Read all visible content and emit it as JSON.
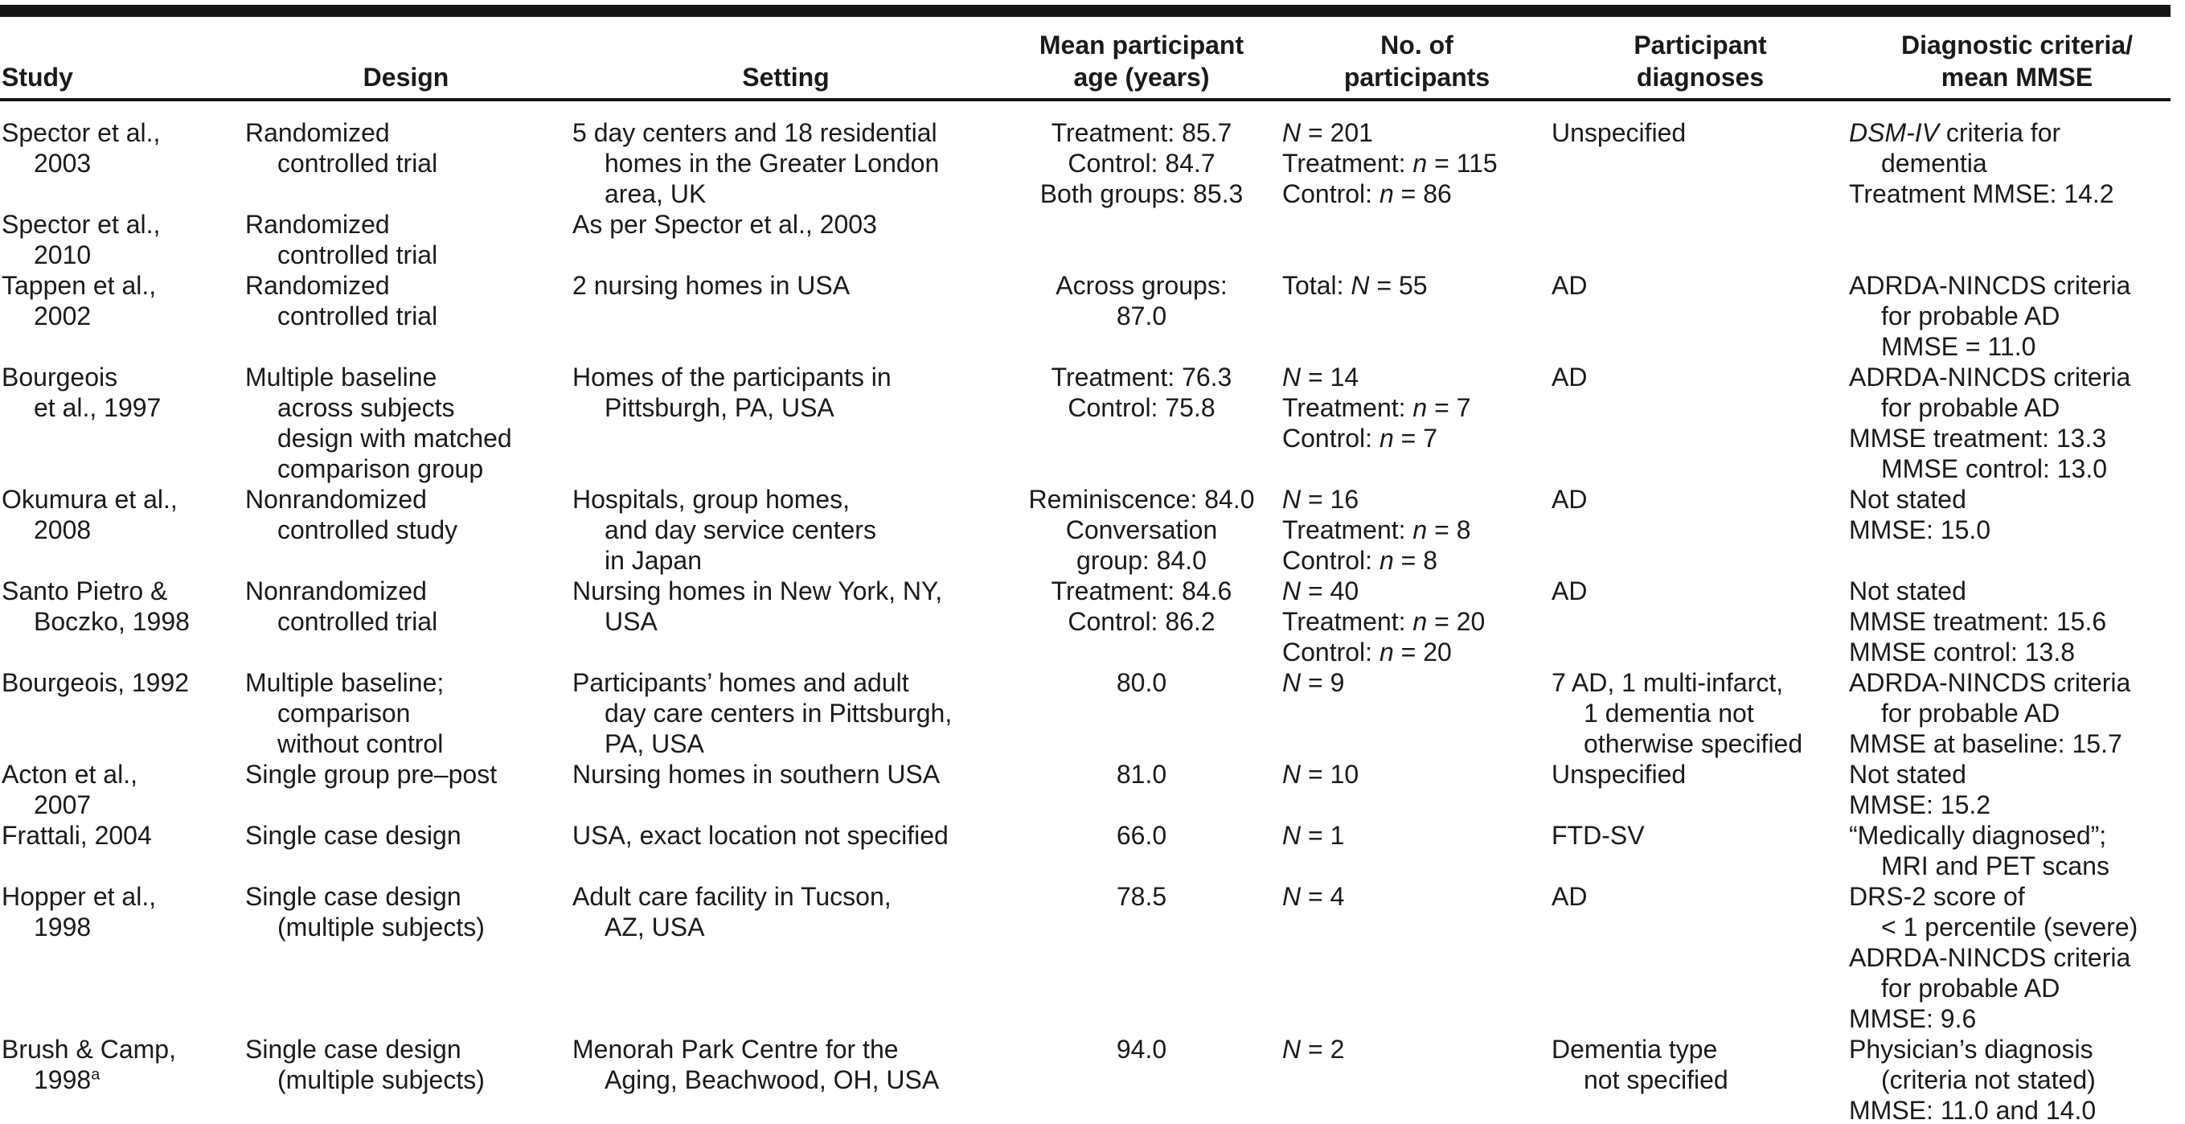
{
  "colors": {
    "rule": "#161616",
    "text": "#1a1a1a",
    "background": "#ffffff"
  },
  "table": {
    "columns": [
      {
        "id": "study",
        "header_align": "left",
        "label_lines": [
          "Study"
        ]
      },
      {
        "id": "design",
        "header_align": "center",
        "label_lines": [
          "Design"
        ]
      },
      {
        "id": "setting",
        "header_align": "center",
        "label_lines": [
          "Setting"
        ]
      },
      {
        "id": "age",
        "header_align": "center",
        "label_lines": [
          "Mean participant",
          "age (years)"
        ]
      },
      {
        "id": "participants",
        "header_align": "center",
        "label_lines": [
          "No. of",
          "participants"
        ]
      },
      {
        "id": "diagnoses",
        "header_align": "center",
        "label_lines": [
          "Participant",
          "diagnoses"
        ]
      },
      {
        "id": "criteria",
        "header_align": "center",
        "label_lines": [
          "Diagnostic criteria/",
          "mean MMSE"
        ]
      }
    ],
    "rows": [
      {
        "study": [
          {
            "t": "Spector et al.,"
          },
          {
            "t": "2003",
            "i": 1
          }
        ],
        "design": [
          {
            "t": "Randomized"
          },
          {
            "t": "controlled trial",
            "i": 1
          }
        ],
        "setting": [
          {
            "t": "5 day centers and 18 residential"
          },
          {
            "t": "homes in the Greater London",
            "i": 1
          },
          {
            "t": "area, UK",
            "i": 1
          }
        ],
        "age": [
          {
            "t": "Treatment: 85.7"
          },
          {
            "t": "Control: 84.7"
          },
          {
            "t": "Both groups: 85.3"
          }
        ],
        "participants": [
          {
            "t": "*N* = 201"
          },
          {
            "t": "Treatment: *n* = 115"
          },
          {
            "t": "Control: *n* = 86"
          }
        ],
        "diagnoses": [
          {
            "t": "Unspecified"
          }
        ],
        "criteria": [
          {
            "t": "*DSM-IV* criteria for"
          },
          {
            "t": "dementia",
            "i": 1
          },
          {
            "t": "Treatment MMSE: 14.2"
          }
        ]
      },
      {
        "study": [
          {
            "t": "Spector et al.,"
          },
          {
            "t": "2010",
            "i": 1
          }
        ],
        "design": [
          {
            "t": "Randomized"
          },
          {
            "t": "controlled trial",
            "i": 1
          }
        ],
        "setting": [
          {
            "t": "As per Spector et al., 2003"
          }
        ],
        "age": [],
        "participants": [],
        "diagnoses": [],
        "criteria": []
      },
      {
        "study": [
          {
            "t": "Tappen et al.,"
          },
          {
            "t": "2002",
            "i": 1
          }
        ],
        "design": [
          {
            "t": "Randomized"
          },
          {
            "t": "controlled trial",
            "i": 1
          }
        ],
        "setting": [
          {
            "t": "2 nursing homes in USA"
          }
        ],
        "age": [
          {
            "t": "Across groups:"
          },
          {
            "t": "87.0"
          }
        ],
        "participants": [
          {
            "t": "Total: *N* = 55"
          }
        ],
        "diagnoses": [
          {
            "t": "AD"
          }
        ],
        "criteria": [
          {
            "t": "ADRDA-NINCDS criteria"
          },
          {
            "t": "for probable AD",
            "i": 1
          },
          {
            "t": "MMSE = 11.0",
            "i": 1
          }
        ]
      },
      {
        "study": [
          {
            "t": "Bourgeois"
          },
          {
            "t": "et al., 1997",
            "i": 1
          }
        ],
        "design": [
          {
            "t": "Multiple baseline"
          },
          {
            "t": "across subjects",
            "i": 1
          },
          {
            "t": "design with matched",
            "i": 1
          },
          {
            "t": "comparison group",
            "i": 1
          }
        ],
        "setting": [
          {
            "t": "Homes of the participants in"
          },
          {
            "t": "Pittsburgh, PA, USA",
            "i": 1
          }
        ],
        "age": [
          {
            "t": "Treatment: 76.3"
          },
          {
            "t": "Control: 75.8"
          }
        ],
        "participants": [
          {
            "t": "*N* = 14"
          },
          {
            "t": "Treatment: *n* = 7"
          },
          {
            "t": "Control: *n* = 7"
          }
        ],
        "diagnoses": [
          {
            "t": "AD"
          }
        ],
        "criteria": [
          {
            "t": "ADRDA-NINCDS criteria"
          },
          {
            "t": "for probable AD",
            "i": 1
          },
          {
            "t": "MMSE treatment: 13.3"
          },
          {
            "t": "MMSE control: 13.0",
            "i": 1
          }
        ]
      },
      {
        "study": [
          {
            "t": "Okumura et al.,"
          },
          {
            "t": "2008",
            "i": 1
          }
        ],
        "design": [
          {
            "t": "Nonrandomized"
          },
          {
            "t": "controlled study",
            "i": 1
          }
        ],
        "setting": [
          {
            "t": "Hospitals, group homes,"
          },
          {
            "t": "and day service centers",
            "i": 1
          },
          {
            "t": "in Japan",
            "i": 1
          }
        ],
        "age": [
          {
            "t": "Reminiscence: 84.0"
          },
          {
            "t": "Conversation"
          },
          {
            "t": "group: 84.0"
          }
        ],
        "participants": [
          {
            "t": "*N* = 16"
          },
          {
            "t": "Treatment: *n* = 8"
          },
          {
            "t": "Control: *n* = 8"
          }
        ],
        "diagnoses": [
          {
            "t": "AD"
          }
        ],
        "criteria": [
          {
            "t": "Not stated"
          },
          {
            "t": "MMSE: 15.0"
          }
        ]
      },
      {
        "study": [
          {
            "t": "Santo Pietro &"
          },
          {
            "t": "Boczko, 1998",
            "i": 1
          }
        ],
        "design": [
          {
            "t": "Nonrandomized"
          },
          {
            "t": "controlled trial",
            "i": 1
          }
        ],
        "setting": [
          {
            "t": "Nursing homes in New York, NY,"
          },
          {
            "t": "USA",
            "i": 1
          }
        ],
        "age": [
          {
            "t": "Treatment: 84.6"
          },
          {
            "t": "Control: 86.2"
          }
        ],
        "participants": [
          {
            "t": "*N* = 40"
          },
          {
            "t": "Treatment: *n* = 20"
          },
          {
            "t": "Control: *n* = 20"
          }
        ],
        "diagnoses": [
          {
            "t": "AD"
          }
        ],
        "criteria": [
          {
            "t": "Not stated"
          },
          {
            "t": "MMSE treatment: 15.6"
          },
          {
            "t": "MMSE control: 13.8"
          }
        ]
      },
      {
        "study": [
          {
            "t": "Bourgeois, 1992"
          }
        ],
        "design": [
          {
            "t": "Multiple baseline;"
          },
          {
            "t": "comparison",
            "i": 1
          },
          {
            "t": "without control",
            "i": 1
          }
        ],
        "setting": [
          {
            "t": "Participants’ homes and adult"
          },
          {
            "t": "day care centers in Pittsburgh,",
            "i": 1
          },
          {
            "t": "PA, USA",
            "i": 1
          }
        ],
        "age": [
          {
            "t": "80.0"
          }
        ],
        "participants": [
          {
            "t": "*N* = 9"
          }
        ],
        "diagnoses": [
          {
            "t": "7 AD, 1 multi-infarct,"
          },
          {
            "t": "1 dementia not",
            "i": 1
          },
          {
            "t": "otherwise specified",
            "i": 1
          }
        ],
        "criteria": [
          {
            "t": "ADRDA-NINCDS criteria"
          },
          {
            "t": "for probable AD",
            "i": 1
          },
          {
            "t": "MMSE at baseline: 15.7"
          }
        ]
      },
      {
        "study": [
          {
            "t": "Acton et al.,"
          },
          {
            "t": "2007",
            "i": 1
          }
        ],
        "design": [
          {
            "t": "Single group pre–post"
          }
        ],
        "setting": [
          {
            "t": "Nursing homes in southern USA"
          }
        ],
        "age": [
          {
            "t": "81.0"
          }
        ],
        "participants": [
          {
            "t": "*N* = 10"
          }
        ],
        "diagnoses": [
          {
            "t": "Unspecified"
          }
        ],
        "criteria": [
          {
            "t": "Not stated"
          },
          {
            "t": "MMSE: 15.2"
          }
        ]
      },
      {
        "study": [
          {
            "t": "Frattali, 2004"
          }
        ],
        "design": [
          {
            "t": "Single case design"
          }
        ],
        "setting": [
          {
            "t": "USA, exact location not specified"
          }
        ],
        "age": [
          {
            "t": "66.0"
          }
        ],
        "participants": [
          {
            "t": "*N* = 1"
          }
        ],
        "diagnoses": [
          {
            "t": "FTD-SV"
          }
        ],
        "criteria": [
          {
            "t": "“Medically diagnosed”;"
          },
          {
            "t": "MRI and PET scans",
            "i": 1
          }
        ]
      },
      {
        "study": [
          {
            "t": "Hopper et al.,"
          },
          {
            "t": "1998",
            "i": 1
          }
        ],
        "design": [
          {
            "t": "Single case design"
          },
          {
            "t": "(multiple subjects)",
            "i": 1
          }
        ],
        "setting": [
          {
            "t": "Adult care facility in Tucson,"
          },
          {
            "t": "AZ, USA",
            "i": 1
          }
        ],
        "age": [
          {
            "t": "78.5"
          }
        ],
        "participants": [
          {
            "t": "*N* = 4"
          }
        ],
        "diagnoses": [
          {
            "t": "AD"
          }
        ],
        "criteria": [
          {
            "t": "DRS-2 score of"
          },
          {
            "t": "< 1 percentile (severe)",
            "i": 1
          },
          {
            "t": "ADRDA-NINCDS criteria"
          },
          {
            "t": "for probable AD",
            "i": 1
          },
          {
            "t": "MMSE: 9.6"
          }
        ]
      },
      {
        "study": [
          {
            "t": "Brush & Camp,"
          },
          {
            "t": "1998^a",
            "i": 1
          }
        ],
        "design": [
          {
            "t": "Single case design"
          },
          {
            "t": "(multiple subjects)",
            "i": 1
          }
        ],
        "setting": [
          {
            "t": "Menorah Park Centre for the"
          },
          {
            "t": "Aging, Beachwood, OH, USA",
            "i": 1
          }
        ],
        "age": [
          {
            "t": "94.0"
          }
        ],
        "participants": [
          {
            "t": "*N* = 2"
          }
        ],
        "diagnoses": [
          {
            "t": "Dementia type"
          },
          {
            "t": "not specified",
            "i": 1
          }
        ],
        "criteria": [
          {
            "t": "Physician’s diagnosis"
          },
          {
            "t": "(criteria not stated)",
            "i": 1
          },
          {
            "t": "MMSE: 11.0 and 14.0"
          }
        ]
      }
    ]
  }
}
